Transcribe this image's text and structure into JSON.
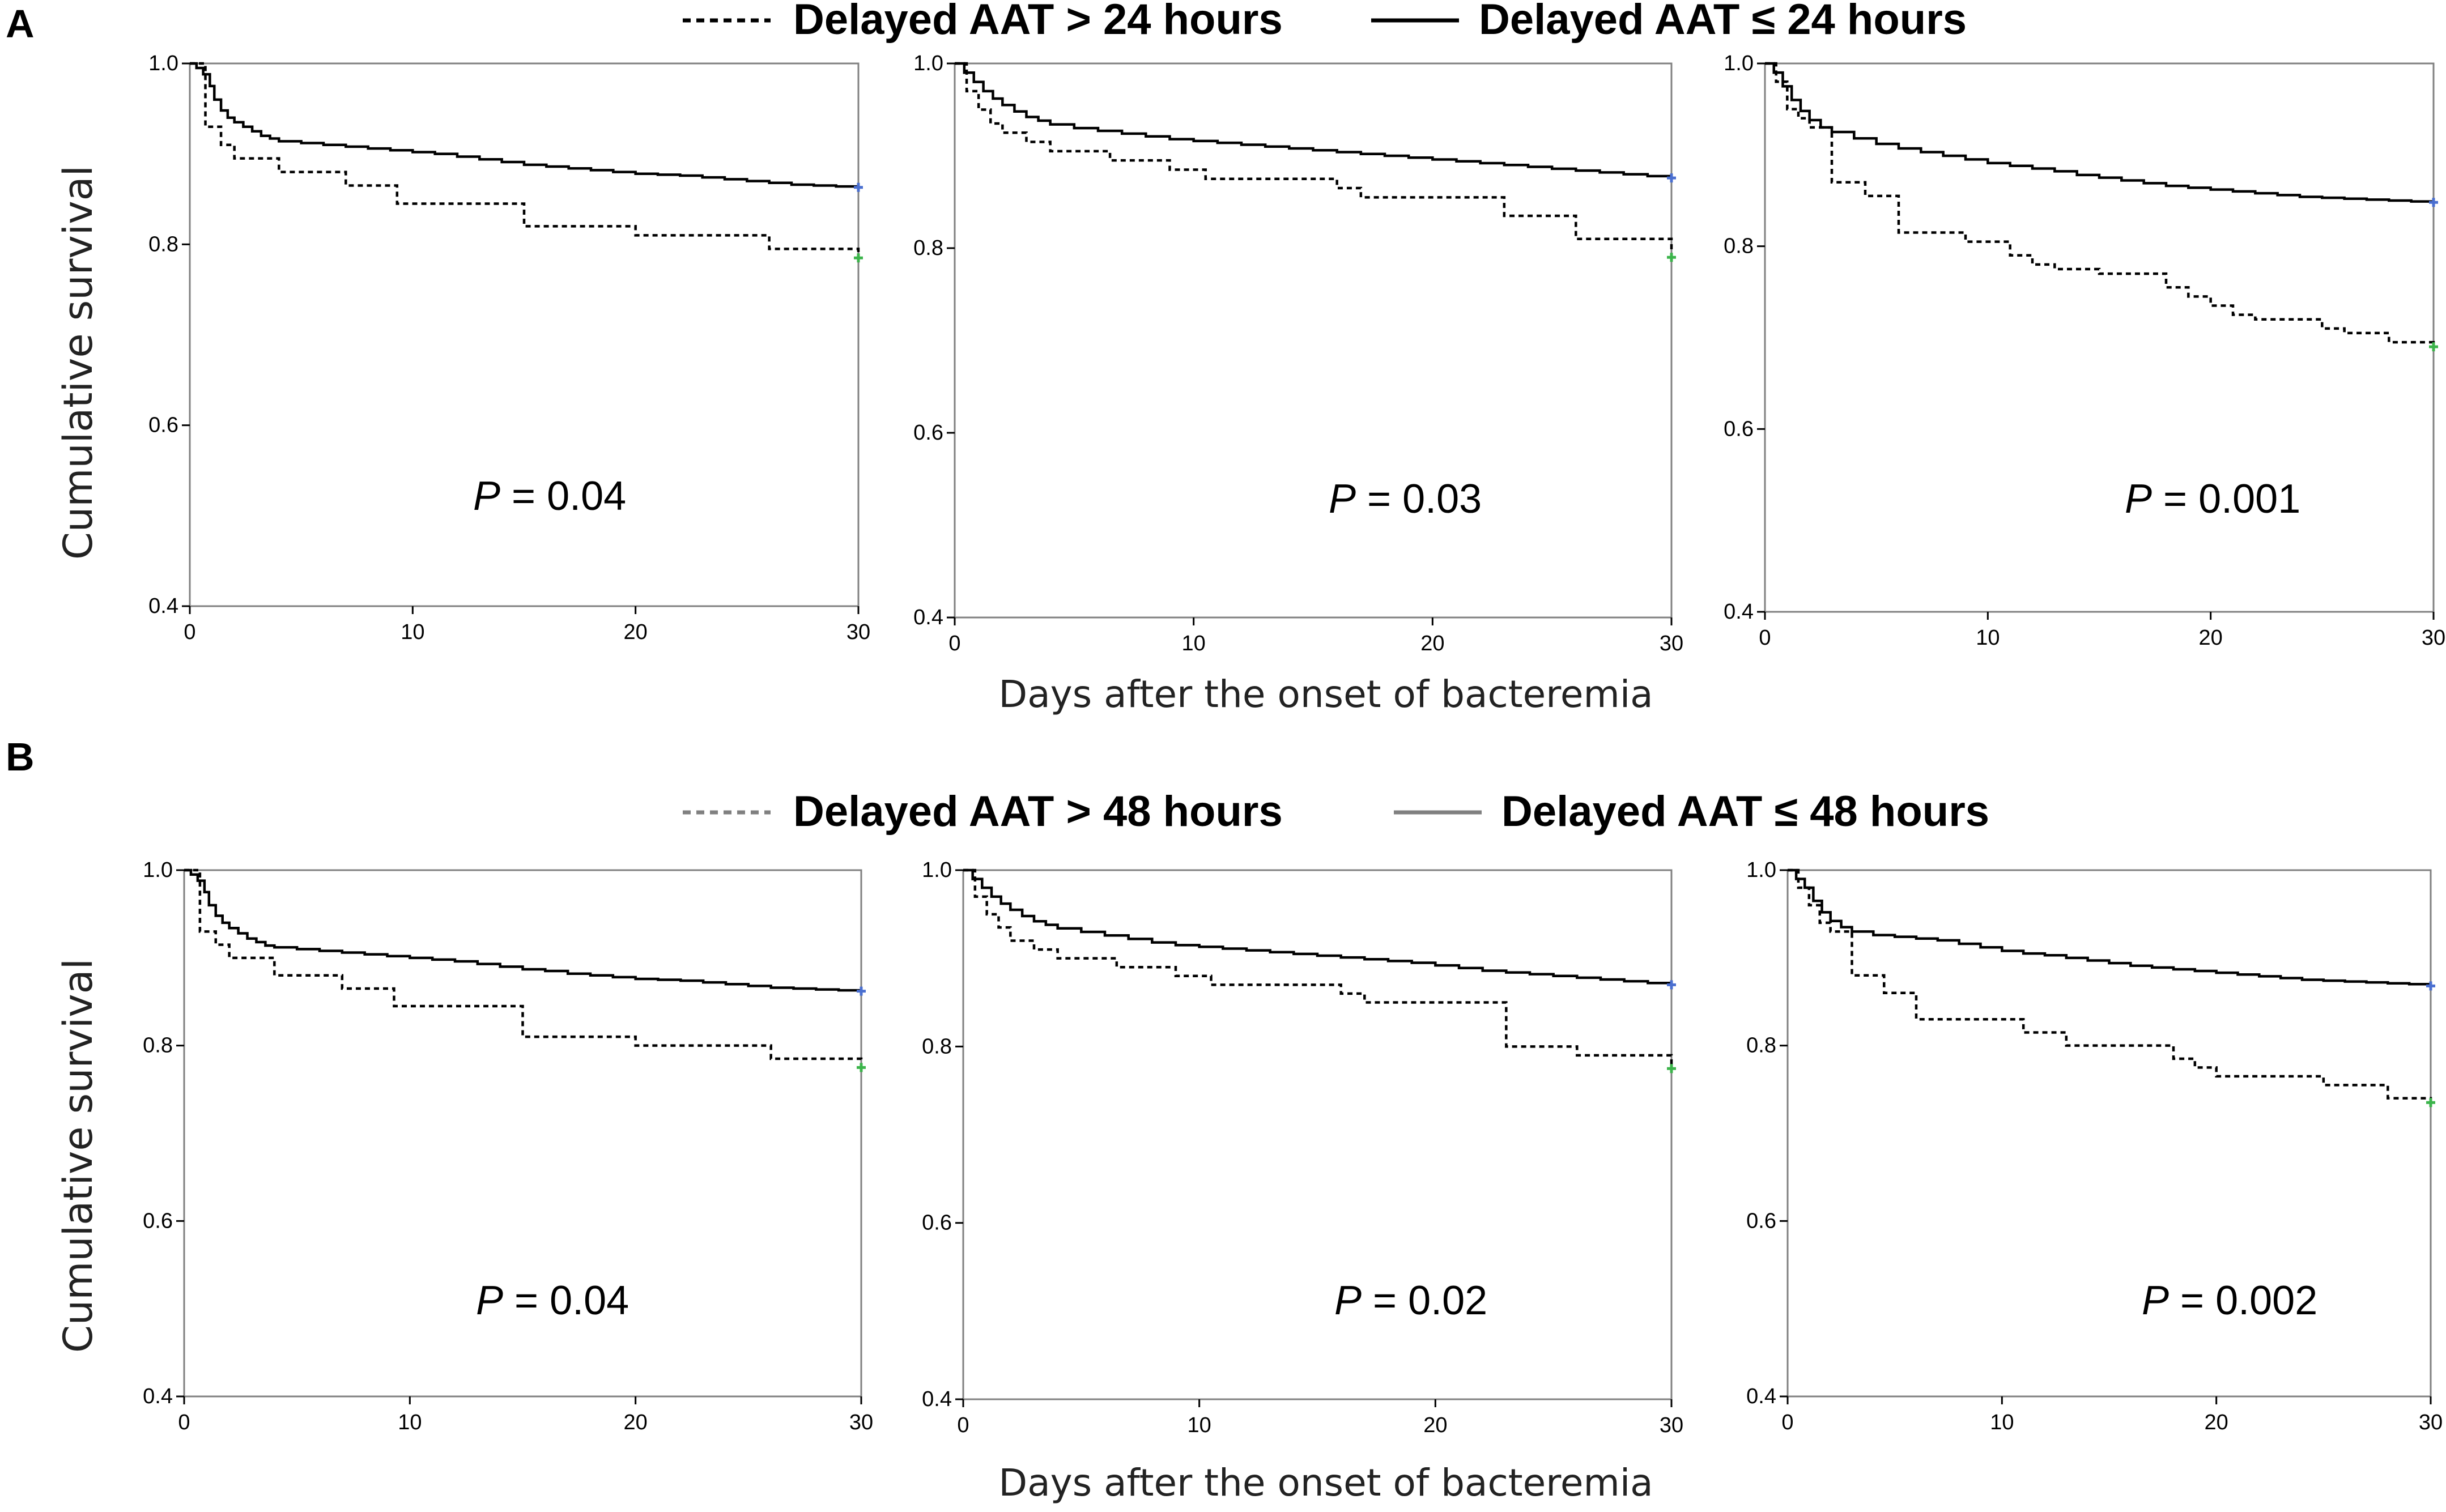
{
  "panels": [
    {
      "letter": "A",
      "legend": {
        "dashed_label": "Delayed AAT > 24 hours",
        "solid_label": "Delayed  AAT ≤ 24 hours",
        "dashed_color": "#000000",
        "solid_color": "#000000"
      },
      "xlabel": "Days after the onset of bacteremia",
      "ylabel": "Cumulative survival"
    },
    {
      "letter": "B",
      "legend": {
        "dashed_label": "Delayed AAT > 48 hours",
        "solid_label": "Delayed AAT ≤ 48 hours",
        "dashed_color": "#808080",
        "solid_color": "#808080"
      },
      "xlabel": "Days after the onset of bacteremia",
      "ylabel": "Cumulative survival"
    }
  ],
  "censor_colors": {
    "solid": "#4a6fd0",
    "dashed": "#3cb44b"
  },
  "chart_data": [
    {
      "type": "line",
      "panel": "A",
      "subplot": 1,
      "title": "",
      "xlabel": "Days after the onset of bacteremia",
      "ylabel": "Cumulative survival",
      "xlim": [
        0,
        30
      ],
      "ylim": [
        0.4,
        1.0
      ],
      "xticks": [
        0,
        10,
        20,
        30
      ],
      "yticks": [
        0.4,
        0.6,
        0.8,
        1.0
      ],
      "p_label": "P",
      "p_value": "= 0.04",
      "series": [
        {
          "name": "Delayed  AAT ≤ 24 hours",
          "style": "solid",
          "x": [
            0,
            0.3,
            0.6,
            0.9,
            1.1,
            1.4,
            1.7,
            2.0,
            2.4,
            2.8,
            3.2,
            3.6,
            4.0,
            5.0,
            6.0,
            7.0,
            8.0,
            9.0,
            10.0,
            11.0,
            12.0,
            13.0,
            14.0,
            15.0,
            16.0,
            17.0,
            18.0,
            19.0,
            20.0,
            21.0,
            22.0,
            23.0,
            24.0,
            25.0,
            26.0,
            27.0,
            28.0,
            29.0,
            30.0
          ],
          "y": [
            1.0,
            0.995,
            0.988,
            0.975,
            0.96,
            0.948,
            0.94,
            0.935,
            0.93,
            0.925,
            0.92,
            0.917,
            0.914,
            0.912,
            0.91,
            0.908,
            0.906,
            0.904,
            0.902,
            0.9,
            0.897,
            0.894,
            0.891,
            0.888,
            0.886,
            0.884,
            0.882,
            0.88,
            0.878,
            0.877,
            0.876,
            0.874,
            0.872,
            0.87,
            0.868,
            0.866,
            0.865,
            0.864,
            0.863
          ]
        },
        {
          "name": "Delayed AAT > 24 hours",
          "style": "dashed",
          "x": [
            0,
            0.7,
            1.4,
            2.0,
            4.0,
            7.0,
            9.3,
            15.0,
            20.0,
            26.0,
            30.0
          ],
          "y": [
            1.0,
            0.93,
            0.91,
            0.895,
            0.88,
            0.865,
            0.845,
            0.82,
            0.81,
            0.795,
            0.785
          ]
        }
      ]
    },
    {
      "type": "line",
      "panel": "A",
      "subplot": 2,
      "title": "",
      "xlabel": "Days after the onset of bacteremia",
      "ylabel": "Cumulative survival",
      "xlim": [
        0,
        30
      ],
      "ylim": [
        0.4,
        1.0
      ],
      "xticks": [
        0,
        10,
        20,
        30
      ],
      "yticks": [
        0.4,
        0.6,
        0.8,
        1.0
      ],
      "p_label": "P",
      "p_value": "= 0.03",
      "series": [
        {
          "name": "Delayed  AAT ≤ 24 hours",
          "style": "solid",
          "x": [
            0,
            0.4,
            0.8,
            1.2,
            1.6,
            2.0,
            2.5,
            3.0,
            3.5,
            4.0,
            5.0,
            6.0,
            7.0,
            8.0,
            9.0,
            10.0,
            11.0,
            12.0,
            13.0,
            14.0,
            15.0,
            16.0,
            17.0,
            18.0,
            19.0,
            20.0,
            21.0,
            22.0,
            23.0,
            24.0,
            25.0,
            26.0,
            27.0,
            28.0,
            29.0,
            30.0
          ],
          "y": [
            1.0,
            0.99,
            0.98,
            0.97,
            0.962,
            0.955,
            0.948,
            0.942,
            0.938,
            0.934,
            0.93,
            0.927,
            0.924,
            0.921,
            0.918,
            0.916,
            0.914,
            0.912,
            0.91,
            0.908,
            0.906,
            0.904,
            0.902,
            0.9,
            0.898,
            0.896,
            0.894,
            0.892,
            0.89,
            0.888,
            0.886,
            0.884,
            0.882,
            0.88,
            0.878,
            0.876
          ]
        },
        {
          "name": "Delayed AAT > 24 hours",
          "style": "dashed",
          "x": [
            0,
            0.5,
            1.0,
            1.5,
            2.0,
            3.0,
            4.0,
            6.5,
            9.0,
            10.5,
            16.0,
            17.0,
            23.0,
            26.0,
            30.0
          ],
          "y": [
            1.0,
            0.97,
            0.95,
            0.935,
            0.925,
            0.915,
            0.905,
            0.895,
            0.885,
            0.875,
            0.865,
            0.855,
            0.835,
            0.81,
            0.79
          ]
        }
      ]
    },
    {
      "type": "line",
      "panel": "A",
      "subplot": 3,
      "title": "",
      "xlabel": "Days after the onset of bacteremia",
      "ylabel": "Cumulative survival",
      "xlim": [
        0,
        30
      ],
      "ylim": [
        0.4,
        1.0
      ],
      "xticks": [
        0,
        10,
        20,
        30
      ],
      "yticks": [
        0.4,
        0.6,
        0.8,
        1.0
      ],
      "p_label": "P",
      "p_value": "= 0.001",
      "series": [
        {
          "name": "Delayed  AAT ≤ 24 hours",
          "style": "solid",
          "x": [
            0,
            0.4,
            0.8,
            1.2,
            1.6,
            2.0,
            2.5,
            3.0,
            4.0,
            5.0,
            6.0,
            7.0,
            8.0,
            9.0,
            10.0,
            11.0,
            12.0,
            13.0,
            14.0,
            15.0,
            16.0,
            17.0,
            18.0,
            19.0,
            20.0,
            21.0,
            22.0,
            23.0,
            24.0,
            25.0,
            26.0,
            27.0,
            28.0,
            29.0,
            30.0
          ],
          "y": [
            1.0,
            0.99,
            0.975,
            0.96,
            0.948,
            0.938,
            0.93,
            0.925,
            0.918,
            0.912,
            0.907,
            0.903,
            0.899,
            0.895,
            0.891,
            0.888,
            0.885,
            0.882,
            0.878,
            0.875,
            0.872,
            0.869,
            0.866,
            0.864,
            0.862,
            0.86,
            0.858,
            0.856,
            0.854,
            0.853,
            0.852,
            0.851,
            0.85,
            0.849,
            0.848
          ]
        },
        {
          "name": "Delayed AAT > 24 hours",
          "style": "dashed",
          "x": [
            0,
            0.5,
            1.0,
            1.5,
            2.0,
            3.0,
            4.5,
            6.0,
            9.0,
            11.0,
            12.0,
            13.0,
            15.0,
            18.0,
            19.0,
            20.0,
            21.0,
            22.0,
            25.0,
            26.0,
            28.0,
            30.0
          ],
          "y": [
            1.0,
            0.98,
            0.95,
            0.94,
            0.93,
            0.87,
            0.855,
            0.815,
            0.805,
            0.79,
            0.78,
            0.775,
            0.77,
            0.755,
            0.745,
            0.735,
            0.725,
            0.72,
            0.71,
            0.705,
            0.695,
            0.69
          ]
        }
      ]
    },
    {
      "type": "line",
      "panel": "B",
      "subplot": 1,
      "title": "",
      "xlabel": "Days after the onset of bacteremia",
      "ylabel": "Cumulative survival",
      "xlim": [
        0,
        30
      ],
      "ylim": [
        0.4,
        1.0
      ],
      "xticks": [
        0,
        10,
        20,
        30
      ],
      "yticks": [
        0.4,
        0.6,
        0.8,
        1.0
      ],
      "p_label": "P",
      "p_value": "= 0.04",
      "series": [
        {
          "name": "Delayed AAT ≤ 48 hours",
          "style": "solid",
          "x": [
            0,
            0.3,
            0.6,
            0.9,
            1.1,
            1.4,
            1.7,
            2.0,
            2.4,
            2.8,
            3.2,
            3.6,
            4.0,
            5.0,
            6.0,
            7.0,
            8.0,
            9.0,
            10.0,
            11.0,
            12.0,
            13.0,
            14.0,
            15.0,
            16.0,
            17.0,
            18.0,
            19.0,
            20.0,
            21.0,
            22.0,
            23.0,
            24.0,
            25.0,
            26.0,
            27.0,
            28.0,
            29.0,
            30.0
          ],
          "y": [
            1.0,
            0.995,
            0.988,
            0.975,
            0.96,
            0.948,
            0.94,
            0.934,
            0.928,
            0.922,
            0.918,
            0.914,
            0.912,
            0.91,
            0.908,
            0.906,
            0.904,
            0.902,
            0.9,
            0.898,
            0.896,
            0.893,
            0.89,
            0.887,
            0.885,
            0.882,
            0.88,
            0.878,
            0.876,
            0.875,
            0.874,
            0.872,
            0.87,
            0.868,
            0.866,
            0.865,
            0.864,
            0.863,
            0.862
          ]
        },
        {
          "name": "Delayed AAT > 48 hours",
          "style": "dashed",
          "x": [
            0,
            0.7,
            1.4,
            2.0,
            4.0,
            7.0,
            9.3,
            15.0,
            20.0,
            26.0,
            30.0
          ],
          "y": [
            1.0,
            0.93,
            0.915,
            0.9,
            0.88,
            0.865,
            0.845,
            0.81,
            0.8,
            0.785,
            0.775
          ]
        }
      ]
    },
    {
      "type": "line",
      "panel": "B",
      "subplot": 2,
      "title": "",
      "xlabel": "Days after the onset of bacteremia",
      "ylabel": "Cumulative survival",
      "xlim": [
        0,
        30
      ],
      "ylim": [
        0.4,
        1.0
      ],
      "xticks": [
        0,
        10,
        20,
        30
      ],
      "yticks": [
        0.4,
        0.6,
        0.8,
        1.0
      ],
      "p_label": "P",
      "p_value": "= 0.02",
      "series": [
        {
          "name": "Delayed AAT ≤ 48 hours",
          "style": "solid",
          "x": [
            0,
            0.4,
            0.8,
            1.2,
            1.6,
            2.0,
            2.5,
            3.0,
            3.5,
            4.0,
            5.0,
            6.0,
            7.0,
            8.0,
            9.0,
            10.0,
            11.0,
            12.0,
            13.0,
            14.0,
            15.0,
            16.0,
            17.0,
            18.0,
            19.0,
            20.0,
            21.0,
            22.0,
            23.0,
            24.0,
            25.0,
            26.0,
            27.0,
            28.0,
            29.0,
            30.0
          ],
          "y": [
            1.0,
            0.99,
            0.98,
            0.97,
            0.962,
            0.955,
            0.948,
            0.942,
            0.938,
            0.934,
            0.93,
            0.926,
            0.922,
            0.918,
            0.915,
            0.913,
            0.911,
            0.909,
            0.907,
            0.905,
            0.903,
            0.901,
            0.899,
            0.897,
            0.895,
            0.892,
            0.889,
            0.886,
            0.884,
            0.882,
            0.88,
            0.878,
            0.876,
            0.874,
            0.872,
            0.87
          ]
        },
        {
          "name": "Delayed AAT > 48 hours",
          "style": "dashed",
          "x": [
            0,
            0.5,
            1.0,
            1.5,
            2.0,
            3.0,
            4.0,
            6.5,
            9.0,
            10.5,
            16.0,
            17.0,
            23.0,
            26.0,
            30.0
          ],
          "y": [
            1.0,
            0.97,
            0.95,
            0.935,
            0.92,
            0.91,
            0.9,
            0.89,
            0.88,
            0.87,
            0.86,
            0.85,
            0.8,
            0.79,
            0.775
          ]
        }
      ]
    },
    {
      "type": "line",
      "panel": "B",
      "subplot": 3,
      "title": "",
      "xlabel": "Days after the onset of bacteremia",
      "ylabel": "Cumulative survival",
      "xlim": [
        0,
        30
      ],
      "ylim": [
        0.4,
        1.0
      ],
      "xticks": [
        0,
        10,
        20,
        30
      ],
      "yticks": [
        0.4,
        0.6,
        0.8,
        1.0
      ],
      "p_label": "P",
      "p_value": "= 0.002",
      "series": [
        {
          "name": "Delayed AAT ≤ 48 hours",
          "style": "solid",
          "x": [
            0,
            0.4,
            0.8,
            1.2,
            1.6,
            2.0,
            2.5,
            3.0,
            4.0,
            5.0,
            6.0,
            7.0,
            8.0,
            9.0,
            10.0,
            11.0,
            12.0,
            13.0,
            14.0,
            15.0,
            16.0,
            17.0,
            18.0,
            19.0,
            20.0,
            21.0,
            22.0,
            23.0,
            24.0,
            25.0,
            26.0,
            27.0,
            28.0,
            29.0,
            30.0
          ],
          "y": [
            1.0,
            0.99,
            0.98,
            0.965,
            0.952,
            0.942,
            0.935,
            0.93,
            0.926,
            0.924,
            0.922,
            0.92,
            0.916,
            0.912,
            0.908,
            0.905,
            0.903,
            0.9,
            0.897,
            0.894,
            0.891,
            0.889,
            0.887,
            0.885,
            0.883,
            0.881,
            0.879,
            0.877,
            0.875,
            0.874,
            0.873,
            0.872,
            0.871,
            0.87,
            0.868
          ]
        },
        {
          "name": "Delayed AAT > 48 hours",
          "style": "dashed",
          "x": [
            0,
            0.5,
            1.0,
            1.5,
            2.0,
            3.0,
            4.5,
            6.0,
            11.0,
            13.0,
            18.0,
            19.0,
            20.0,
            25.0,
            28.0,
            30.0
          ],
          "y": [
            1.0,
            0.98,
            0.96,
            0.94,
            0.93,
            0.88,
            0.86,
            0.83,
            0.815,
            0.8,
            0.785,
            0.775,
            0.765,
            0.755,
            0.74,
            0.735
          ]
        }
      ]
    }
  ]
}
